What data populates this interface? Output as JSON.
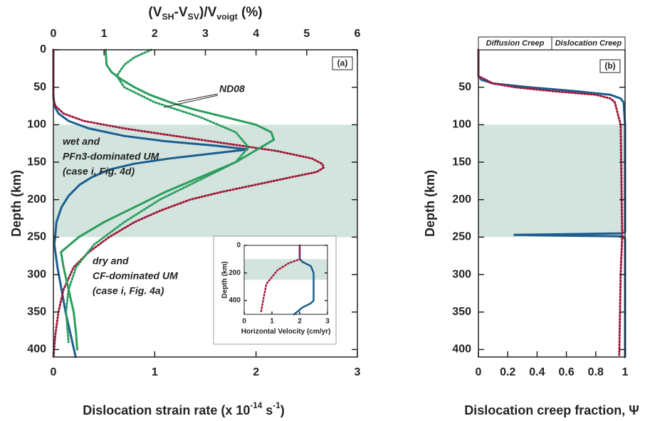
{
  "chart_data": [
    {
      "type": "line",
      "panel_label": "(a)",
      "xlabel": [
        "Dislocation strain rate (x 10",
        "-14",
        " s",
        "-1",
        ")"
      ],
      "x2label": [
        "(V",
        "SH",
        "-V",
        "SV",
        ")/V",
        "voigt",
        " (%)"
      ],
      "x2color": "#2a9d5c",
      "ylabel": "Depth (km)",
      "y_inverted": true,
      "xlim": [
        0,
        3
      ],
      "xticks": [
        0,
        1,
        2,
        3
      ],
      "x2lim": [
        0,
        6
      ],
      "x2ticks": [
        0,
        1,
        2,
        3,
        4,
        5,
        6
      ],
      "ylim": [
        0,
        410
      ],
      "yticks": [
        0,
        50,
        100,
        150,
        200,
        250,
        300,
        350,
        400
      ],
      "shaded_range": [
        100,
        250
      ],
      "shade_color": "#d3e4de",
      "series": [
        {
          "color": "#1b5e8f",
          "style": "solid",
          "depth": [
            0,
            60,
            75,
            85,
            95,
            105,
            115,
            122,
            128,
            133,
            138,
            145,
            152,
            160,
            170,
            180,
            195,
            210,
            230,
            260,
            290,
            320,
            350,
            380,
            410
          ],
          "values": [
            0,
            0,
            0.01,
            0.05,
            0.15,
            0.35,
            0.7,
            1.1,
            1.6,
            1.92,
            1.6,
            1.15,
            0.8,
            0.55,
            0.38,
            0.26,
            0.15,
            0.08,
            0.03,
            0.01,
            0.04,
            0.08,
            0.12,
            0.17,
            0.22
          ]
        },
        {
          "color": "#a01b3c",
          "style": "dotted",
          "depth": [
            0,
            65,
            75,
            85,
            95,
            105,
            115,
            125,
            135,
            145,
            152,
            157,
            163,
            170,
            180,
            190,
            200,
            215,
            230,
            250,
            270,
            290,
            320,
            350,
            380,
            410
          ],
          "values": [
            0,
            0,
            0.02,
            0.1,
            0.3,
            0.7,
            1.2,
            1.7,
            2.2,
            2.55,
            2.65,
            2.67,
            2.6,
            2.35,
            2.0,
            1.65,
            1.35,
            1.05,
            0.8,
            0.55,
            0.35,
            0.2,
            0.1,
            0.05,
            0.02,
            0
          ]
        },
        {
          "color": "#2a9d5c",
          "style": "solid",
          "axis": "x2",
          "depth": [
            0,
            20,
            30,
            40,
            50,
            60,
            70,
            80,
            90,
            100,
            110,
            120,
            130,
            140,
            150,
            170,
            190,
            210,
            230,
            250,
            270,
            290,
            320,
            350,
            380,
            400
          ],
          "values": [
            1.03,
            1.05,
            1.15,
            1.35,
            1.6,
            1.9,
            2.3,
            2.8,
            3.4,
            4.0,
            4.3,
            4.35,
            4.1,
            3.85,
            3.6,
            2.9,
            2.2,
            1.6,
            1.0,
            0.5,
            0.15,
            0.2,
            0.3,
            0.4,
            0.45,
            0.47
          ]
        },
        {
          "color": "#2a9d5c",
          "style": "dotted",
          "axis": "x2",
          "depth": [
            0,
            10,
            20,
            35,
            50,
            70,
            90,
            110,
            130,
            150,
            170,
            200,
            230,
            260,
            290,
            320,
            350,
            390
          ],
          "values": [
            1.93,
            1.6,
            1.4,
            1.25,
            1.4,
            2.0,
            2.9,
            3.6,
            3.85,
            3.6,
            3.0,
            2.1,
            1.4,
            0.8,
            0.45,
            0.3,
            0.25,
            0.3
          ]
        }
      ],
      "annotations": [
        {
          "text": [
            "wet and",
            "PFn3-dominated UM",
            "(case i, Fig. 4d)"
          ],
          "color": "#1b5e8f"
        },
        {
          "text": [
            "dry and",
            "CF-dominated UM",
            "(case i, Fig. 4a)"
          ],
          "color": "#a01b3c"
        },
        {
          "text": [
            "ND08"
          ],
          "color": "#2a9d5c"
        }
      ]
    },
    {
      "type": "line",
      "xlabel": [
        "Horizontal Velocity (cm/yr)"
      ],
      "ylabel": "Depth (km)",
      "y_inverted": true,
      "xlim": [
        0,
        3
      ],
      "xticks": [
        0,
        1,
        2,
        3
      ],
      "ylim": [
        0,
        500
      ],
      "yticks": [
        0,
        200,
        400
      ],
      "shaded_range": [
        100,
        250
      ],
      "shade_color": "#d3e4de",
      "series": [
        {
          "color": "#1b5e8f",
          "style": "solid",
          "depth": [
            0,
            100,
            120,
            150,
            200,
            300,
            400,
            420,
            450,
            500
          ],
          "values": [
            2.0,
            2.0,
            2.1,
            2.4,
            2.5,
            2.5,
            2.5,
            2.4,
            2.1,
            1.8
          ]
        },
        {
          "color": "#a01b3c",
          "style": "dotted",
          "depth": [
            0,
            100,
            130,
            180,
            280,
            380,
            490
          ],
          "values": [
            2.0,
            2.0,
            1.6,
            1.2,
            0.8,
            0.7,
            0.6
          ]
        }
      ]
    },
    {
      "type": "line",
      "panel_label": "(b)",
      "xlabel": [
        "Dislocation creep fraction, Ψ"
      ],
      "ylabel": "Depth (km)",
      "y_inverted": true,
      "xlim": [
        0,
        1
      ],
      "xticks": [
        0,
        0.2,
        0.4,
        0.6,
        0.8,
        1
      ],
      "ylim": [
        0,
        410
      ],
      "yticks": [
        50,
        100,
        150,
        200,
        250,
        300,
        350,
        400
      ],
      "shaded_range": [
        100,
        250
      ],
      "shade_color": "#d3e4de",
      "regime_labels": [
        "Diffusion Creep",
        "Dislocation Creep"
      ],
      "regime_boundary": 0.5,
      "series": [
        {
          "color": "#1b5e8f",
          "style": "solid",
          "depth": [
            0,
            35,
            40,
            45,
            50,
            55,
            60,
            65,
            70,
            100,
            243,
            245,
            247,
            249,
            252,
            300,
            410
          ],
          "values": [
            0,
            0,
            0.02,
            0.1,
            0.35,
            0.65,
            0.9,
            0.97,
            0.99,
            1,
            1,
            0.98,
            0.24,
            0.98,
            1,
            1,
            1
          ]
        },
        {
          "color": "#a01b3c",
          "style": "dotted",
          "depth": [
            0,
            35,
            45,
            50,
            55,
            60,
            65,
            70,
            100,
            250,
            300,
            410
          ],
          "values": [
            0,
            0,
            0.1,
            0.25,
            0.5,
            0.8,
            0.9,
            0.93,
            0.97,
            0.98,
            0.97,
            0.96
          ]
        }
      ]
    }
  ]
}
